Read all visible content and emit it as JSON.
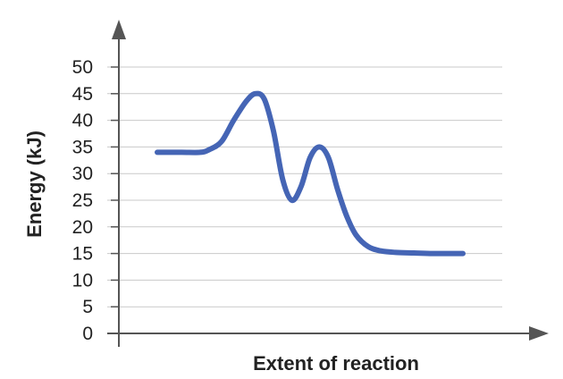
{
  "chart_data": {
    "type": "line",
    "title": "",
    "xlabel": "Extent of reaction",
    "ylabel": "Energy (kJ)",
    "ylim": [
      0,
      50
    ],
    "yticks": [
      0,
      5,
      10,
      15,
      20,
      25,
      30,
      35,
      40,
      45,
      50
    ],
    "grid": true,
    "x_tick_labels": false,
    "series": [
      {
        "color": "#4565b5",
        "x": [
          0.0,
          0.08,
          0.14,
          0.17,
          0.21,
          0.25,
          0.29,
          0.32,
          0.35,
          0.38,
          0.41,
          0.44,
          0.47,
          0.5,
          0.53,
          0.56,
          0.59,
          0.62,
          0.65,
          0.69,
          0.73,
          0.78,
          0.84,
          0.9,
          0.96,
          1.0
        ],
        "values": [
          34,
          34,
          34,
          34.5,
          36,
          40,
          43.5,
          45,
          44,
          38,
          29,
          25,
          27.5,
          33,
          35,
          33,
          27,
          22,
          18.5,
          16.3,
          15.5,
          15.2,
          15.1,
          15,
          15,
          15
        ]
      }
    ]
  }
}
